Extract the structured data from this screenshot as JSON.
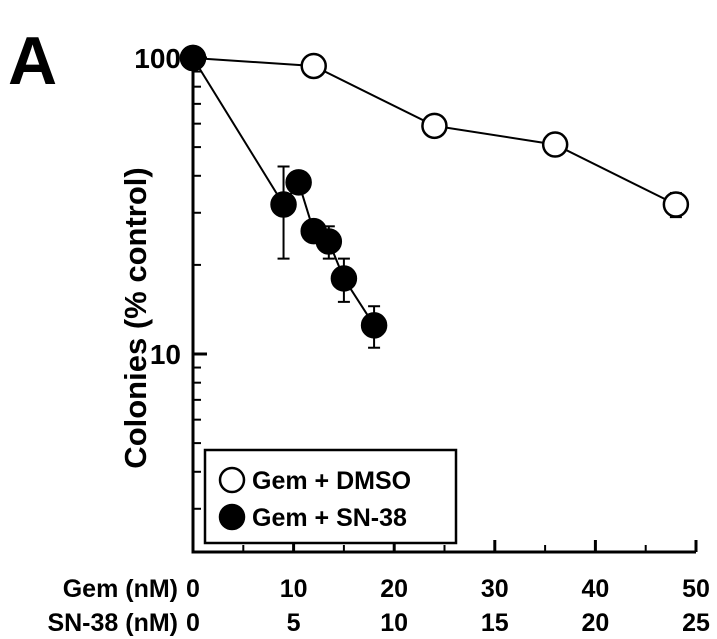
{
  "panel_label": "A",
  "chart_data": {
    "type": "scatter",
    "ylabel": "Colonies (% control)",
    "yscale": "log",
    "ylim": [
      3,
      100
    ],
    "yticks": [
      {
        "value": 100,
        "label": "100"
      },
      {
        "value": 10,
        "label": "10"
      }
    ],
    "x_axes": [
      {
        "name": "Gem (nM)",
        "ticks": [
          "0",
          "10",
          "20",
          "30",
          "40",
          "50"
        ],
        "range": [
          0,
          50
        ]
      },
      {
        "name": "SN-38 (nM)",
        "ticks": [
          "0",
          "5",
          "10",
          "15",
          "20",
          "25"
        ],
        "range": [
          0,
          25
        ]
      }
    ],
    "legend_position": "bottom-left",
    "series": [
      {
        "name": "Gem + DMSO",
        "marker": "open-circle",
        "x": [
          0,
          12,
          24,
          36,
          48
        ],
        "y": [
          100,
          94,
          59,
          51,
          32
        ],
        "err": [
          0,
          0,
          3,
          2,
          3
        ]
      },
      {
        "name": "Gem + SN-38",
        "marker": "filled-circle",
        "x": [
          0,
          9,
          10.5,
          12,
          13.5,
          15,
          18
        ],
        "y": [
          100,
          32,
          38,
          26,
          24,
          18,
          12.5
        ],
        "err": [
          0,
          11,
          0,
          0,
          3,
          3,
          2
        ]
      }
    ]
  }
}
